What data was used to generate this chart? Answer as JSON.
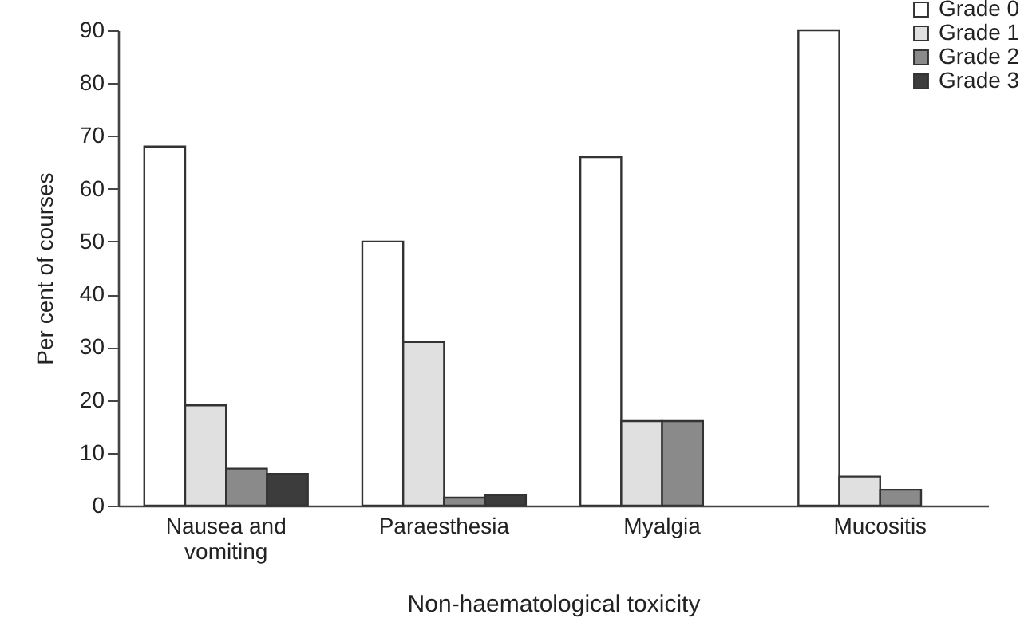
{
  "chart_data": {
    "type": "bar",
    "xlabel": "Non-haematological toxicity",
    "ylabel": "Per cent of courses",
    "categories": [
      "Nausea and vomiting",
      "Paraesthesia",
      "Myalgia",
      "Mucositis"
    ],
    "series": [
      {
        "name": "Grade 0",
        "color": "#ffffff",
        "values": [
          68,
          50,
          66,
          90
        ]
      },
      {
        "name": "Grade 1",
        "color": "#e0e0e0",
        "values": [
          19,
          31,
          16,
          5.5
        ]
      },
      {
        "name": "Grade 2",
        "color": "#8a8a8a",
        "values": [
          7,
          1.5,
          16,
          3
        ]
      },
      {
        "name": "Grade 3",
        "color": "#3c3c3c",
        "values": [
          6,
          2,
          null,
          null
        ]
      }
    ],
    "ylim": [
      0,
      90
    ],
    "yticks": [
      0,
      10,
      20,
      30,
      40,
      50,
      60,
      70,
      80,
      90
    ],
    "grid": false,
    "legend": "top right"
  }
}
